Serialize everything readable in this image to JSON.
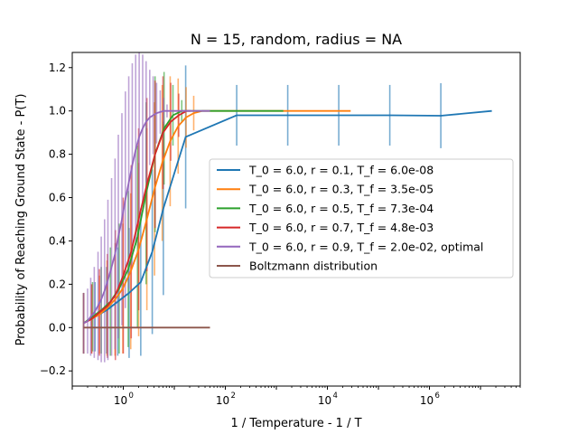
{
  "chart_data": {
    "type": "line",
    "title": "N = 15, random, radius = NA",
    "xlabel": "1 / Temperature - 1 / T",
    "ylabel": "Probability of Reaching Ground State - P(T)",
    "xscale": "log",
    "xlim": [
      0.1,
      60000000
    ],
    "ylim": [
      -0.27,
      1.27
    ],
    "xticks": [
      {
        "value": 1,
        "base": "10",
        "exp": "0"
      },
      {
        "value": 100,
        "base": "10",
        "exp": "2"
      },
      {
        "value": 10000,
        "base": "10",
        "exp": "4"
      },
      {
        "value": 1000000,
        "base": "10",
        "exp": "6"
      }
    ],
    "yticks": [
      -0.2,
      0.0,
      0.2,
      0.4,
      0.6,
      0.8,
      1.0,
      1.2
    ],
    "ytick_labels": [
      "−0.2",
      "0.0",
      "0.2",
      "0.4",
      "0.6",
      "0.8",
      "1.0",
      "1.2"
    ],
    "grid": false,
    "legend_position": "center-right",
    "series": [
      {
        "name": "T_0 = 6.0, r = 0.1, T_f = 6.0e-08",
        "color": "#1f77b4",
        "x": [
          0.167,
          0.28,
          0.47,
          0.78,
          1.3,
          2.2,
          3.7,
          6.1,
          16.7,
          167,
          1670,
          16700,
          167000,
          1670000,
          16700000
        ],
        "y": [
          0.02,
          0.05,
          0.08,
          0.12,
          0.16,
          0.21,
          0.35,
          0.55,
          0.88,
          0.98,
          0.98,
          0.98,
          0.98,
          0.978,
          1.0
        ],
        "err": [
          0.14,
          0.16,
          0.2,
          0.25,
          0.3,
          0.34,
          0.38,
          0.4,
          0.33,
          0.14,
          0.14,
          0.14,
          0.14,
          0.15,
          0.0
        ]
      },
      {
        "name": "T_0 = 6.0, r = 0.3, T_f = 3.5e-05",
        "color": "#ff7f0e",
        "x": [
          0.167,
          0.24,
          0.34,
          0.48,
          0.69,
          0.98,
          1.4,
          2.0,
          2.9,
          4.1,
          5.8,
          8.3,
          11.9,
          17,
          24,
          35,
          170,
          1700,
          28600
        ],
        "y": [
          0.02,
          0.04,
          0.06,
          0.09,
          0.13,
          0.18,
          0.26,
          0.36,
          0.5,
          0.64,
          0.76,
          0.86,
          0.93,
          0.97,
          0.99,
          1.0,
          1.0,
          1.0,
          1.0
        ],
        "err": [
          0.14,
          0.16,
          0.18,
          0.22,
          0.26,
          0.3,
          0.36,
          0.4,
          0.42,
          0.4,
          0.36,
          0.3,
          0.22,
          0.14,
          0.08,
          0.0,
          0.0,
          0.0,
          0.0
        ]
      },
      {
        "name": "T_0 = 6.0, r = 0.5, T_f = 7.3e-04",
        "color": "#2ca02c",
        "x": [
          0.167,
          0.25,
          0.37,
          0.56,
          0.83,
          1.25,
          1.9,
          2.8,
          4.2,
          6.3,
          9.4,
          14,
          21,
          1370
        ],
        "y": [
          0.02,
          0.05,
          0.08,
          0.12,
          0.18,
          0.27,
          0.42,
          0.62,
          0.8,
          0.92,
          0.98,
          1.0,
          1.0,
          1.0
        ],
        "err": [
          0.14,
          0.16,
          0.2,
          0.25,
          0.3,
          0.36,
          0.42,
          0.42,
          0.36,
          0.26,
          0.14,
          0.05,
          0.0,
          0.0
        ]
      },
      {
        "name": "T_0 = 6.0, r = 0.7, T_f = 4.8e-03",
        "color": "#d62728",
        "x": [
          0.167,
          0.24,
          0.34,
          0.49,
          0.7,
          1.0,
          1.43,
          2.0,
          2.9,
          4.2,
          6.0,
          8.5,
          12.2,
          17.4,
          20.8
        ],
        "y": [
          0.02,
          0.04,
          0.07,
          0.1,
          0.15,
          0.24,
          0.35,
          0.5,
          0.66,
          0.8,
          0.9,
          0.95,
          0.98,
          1.0,
          1.0
        ],
        "err": [
          0.14,
          0.16,
          0.2,
          0.24,
          0.3,
          0.36,
          0.4,
          0.42,
          0.4,
          0.34,
          0.26,
          0.18,
          0.1,
          0.0,
          0.0
        ]
      },
      {
        "name": "T_0 = 6.0, r = 0.9, T_f = 2.0e-02, optimal",
        "color": "#9467bd",
        "x": [
          0.167,
          0.2,
          0.23,
          0.27,
          0.32,
          0.37,
          0.43,
          0.5,
          0.59,
          0.69,
          0.8,
          0.94,
          1.1,
          1.28,
          1.5,
          1.75,
          2.05,
          2.4,
          2.8,
          3.3,
          3.85,
          4.5,
          5.3,
          6.2,
          7.2,
          8.4,
          9.9,
          11.6,
          13.5,
          15.8,
          18.5,
          21.6,
          25.3,
          29.6,
          34.6,
          40.5,
          47.4,
          50
        ],
        "y": [
          0.02,
          0.03,
          0.05,
          0.07,
          0.1,
          0.13,
          0.17,
          0.22,
          0.28,
          0.34,
          0.42,
          0.5,
          0.59,
          0.67,
          0.75,
          0.82,
          0.88,
          0.92,
          0.95,
          0.97,
          0.98,
          0.99,
          0.995,
          1.0,
          1.0,
          1.0,
          1.0,
          1.0,
          1.0,
          1.0,
          1.0,
          1.0,
          1.0,
          1.0,
          1.0,
          1.0,
          1.0,
          1.0
        ],
        "err": [
          0.14,
          0.15,
          0.18,
          0.21,
          0.25,
          0.29,
          0.33,
          0.37,
          0.41,
          0.44,
          0.47,
          0.49,
          0.5,
          0.49,
          0.47,
          0.44,
          0.4,
          0.34,
          0.28,
          0.22,
          0.18,
          0.14,
          0.1,
          0.06,
          0.03,
          0.0,
          0.0,
          0.0,
          0.0,
          0.0,
          0.0,
          0.0,
          0.0,
          0.0,
          0.0,
          0.0,
          0.0,
          0.0
        ]
      },
      {
        "name": "Boltzmann distribution",
        "color": "#8c564b",
        "x": [
          0.167,
          50
        ],
        "y": [
          0.0,
          0.0
        ],
        "err": [
          0,
          0
        ]
      }
    ]
  }
}
